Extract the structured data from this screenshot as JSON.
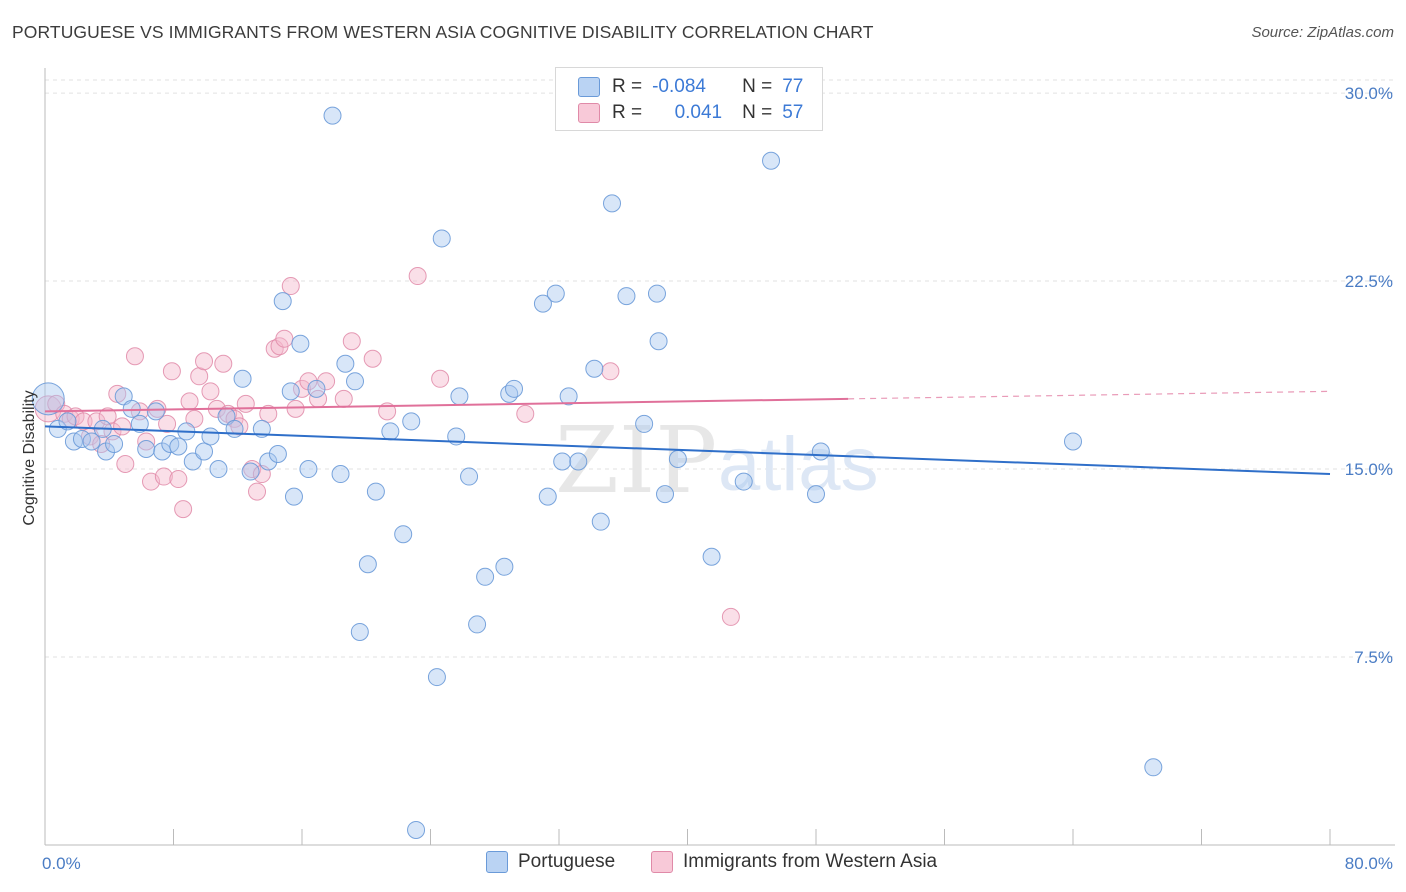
{
  "title": "PORTUGUESE VS IMMIGRANTS FROM WESTERN ASIA COGNITIVE DISABILITY CORRELATION CHART",
  "source": "Source: ZipAtlas.com",
  "watermark_zip": "ZIP",
  "watermark_atlas": "atlas",
  "legend": {
    "r_label": "R =",
    "n_label": "N =",
    "series": [
      {
        "r": "-0.084",
        "n": "77"
      },
      {
        "r": "0.041",
        "n": "57"
      }
    ]
  },
  "colors": {
    "blue_fill": "#a9c8f0",
    "blue_stroke": "#6a9ad8",
    "blue_line": "#2f6fc9",
    "pink_fill": "#f5b8cc",
    "pink_stroke": "#e08aa8",
    "pink_line": "#e0709a"
  },
  "chart_data": {
    "type": "scatter",
    "title": "PORTUGUESE VS IMMIGRANTS FROM WESTERN ASIA COGNITIVE DISABILITY CORRELATION CHART",
    "xlabel": "",
    "ylabel": "Cognitive Disability",
    "xlim": [
      0,
      80
    ],
    "ylim": [
      0,
      31
    ],
    "x_tick_labels": [
      "0.0%",
      "80.0%"
    ],
    "y_ticks": [
      7.5,
      15.0,
      22.5,
      30.0
    ],
    "y_tick_labels": [
      "7.5%",
      "15.0%",
      "22.5%",
      "30.0%"
    ],
    "series": [
      {
        "name": "Portuguese",
        "r": -0.084,
        "n": 77,
        "trend": {
          "x0": 0,
          "y0": 16.7,
          "x1": 80,
          "y1": 14.8
        },
        "points": [
          [
            0.2,
            17.8
          ],
          [
            0.8,
            16.6
          ],
          [
            1.4,
            16.9
          ],
          [
            1.8,
            16.1
          ],
          [
            2.3,
            16.2
          ],
          [
            2.9,
            16.1
          ],
          [
            3.6,
            16.6
          ],
          [
            3.8,
            15.7
          ],
          [
            4.3,
            16.0
          ],
          [
            4.9,
            17.9
          ],
          [
            5.4,
            17.4
          ],
          [
            5.9,
            16.8
          ],
          [
            6.3,
            15.8
          ],
          [
            6.9,
            17.3
          ],
          [
            7.3,
            15.7
          ],
          [
            7.8,
            16.0
          ],
          [
            8.3,
            15.9
          ],
          [
            8.8,
            16.5
          ],
          [
            9.2,
            15.3
          ],
          [
            9.9,
            15.7
          ],
          [
            10.3,
            16.3
          ],
          [
            10.8,
            15.0
          ],
          [
            11.3,
            17.1
          ],
          [
            11.8,
            16.6
          ],
          [
            12.3,
            18.6
          ],
          [
            12.8,
            14.9
          ],
          [
            13.5,
            16.6
          ],
          [
            13.9,
            15.3
          ],
          [
            14.5,
            15.6
          ],
          [
            14.8,
            21.7
          ],
          [
            15.3,
            18.1
          ],
          [
            15.5,
            13.9
          ],
          [
            15.9,
            20.0
          ],
          [
            16.4,
            15.0
          ],
          [
            16.9,
            18.2
          ],
          [
            17.9,
            29.1
          ],
          [
            18.4,
            14.8
          ],
          [
            18.7,
            19.2
          ],
          [
            19.3,
            18.5
          ],
          [
            19.6,
            8.5
          ],
          [
            20.1,
            11.2
          ],
          [
            20.6,
            14.1
          ],
          [
            21.5,
            16.5
          ],
          [
            22.3,
            12.4
          ],
          [
            22.8,
            16.9
          ],
          [
            23.1,
            0.6
          ],
          [
            24.4,
            6.7
          ],
          [
            24.7,
            24.2
          ],
          [
            25.6,
            16.3
          ],
          [
            25.8,
            17.9
          ],
          [
            26.4,
            14.7
          ],
          [
            26.9,
            8.8
          ],
          [
            27.4,
            10.7
          ],
          [
            28.6,
            11.1
          ],
          [
            28.9,
            18.0
          ],
          [
            29.2,
            18.2
          ],
          [
            31.0,
            21.6
          ],
          [
            31.3,
            13.9
          ],
          [
            31.8,
            22.0
          ],
          [
            32.2,
            15.3
          ],
          [
            32.6,
            17.9
          ],
          [
            33.2,
            15.3
          ],
          [
            34.2,
            19.0
          ],
          [
            34.6,
            12.9
          ],
          [
            35.3,
            25.6
          ],
          [
            36.2,
            21.9
          ],
          [
            37.3,
            16.8
          ],
          [
            38.1,
            22.0
          ],
          [
            38.2,
            20.1
          ],
          [
            38.6,
            14.0
          ],
          [
            39.4,
            15.4
          ],
          [
            41.5,
            11.5
          ],
          [
            43.5,
            14.5
          ],
          [
            45.2,
            27.3
          ],
          [
            48.0,
            14.0
          ],
          [
            48.3,
            15.7
          ],
          [
            64.0,
            16.1
          ],
          [
            69.0,
            3.1
          ]
        ]
      },
      {
        "name": "Immigrants from Western Asia",
        "r": 0.041,
        "n": 57,
        "trend": {
          "x0": 0,
          "y0": 17.3,
          "x1": 50,
          "y1": 17.8
        },
        "trend_dashed": {
          "x0": 50,
          "y0": 17.8,
          "x1": 80,
          "y1": 18.1
        },
        "points": [
          [
            0.2,
            17.4
          ],
          [
            0.7,
            17.6
          ],
          [
            1.2,
            17.2
          ],
          [
            1.6,
            17.0
          ],
          [
            1.9,
            17.1
          ],
          [
            2.4,
            16.9
          ],
          [
            2.8,
            16.3
          ],
          [
            3.2,
            16.9
          ],
          [
            3.5,
            16.0
          ],
          [
            3.9,
            17.1
          ],
          [
            4.2,
            16.5
          ],
          [
            4.5,
            18.0
          ],
          [
            4.8,
            16.7
          ],
          [
            5.0,
            15.2
          ],
          [
            5.6,
            19.5
          ],
          [
            5.9,
            17.3
          ],
          [
            6.3,
            16.1
          ],
          [
            6.6,
            14.5
          ],
          [
            7.0,
            17.4
          ],
          [
            7.4,
            14.7
          ],
          [
            7.6,
            16.8
          ],
          [
            7.9,
            18.9
          ],
          [
            8.3,
            14.6
          ],
          [
            8.6,
            13.4
          ],
          [
            9.0,
            17.7
          ],
          [
            9.3,
            17.0
          ],
          [
            9.6,
            18.7
          ],
          [
            9.9,
            19.3
          ],
          [
            10.3,
            18.1
          ],
          [
            10.7,
            17.4
          ],
          [
            11.1,
            19.2
          ],
          [
            11.4,
            17.2
          ],
          [
            11.8,
            17.0
          ],
          [
            12.1,
            16.7
          ],
          [
            12.5,
            17.6
          ],
          [
            12.9,
            15.0
          ],
          [
            13.2,
            14.1
          ],
          [
            13.5,
            14.8
          ],
          [
            13.9,
            17.2
          ],
          [
            14.3,
            19.8
          ],
          [
            14.6,
            19.9
          ],
          [
            14.9,
            20.2
          ],
          [
            15.3,
            22.3
          ],
          [
            15.6,
            17.4
          ],
          [
            16.0,
            18.2
          ],
          [
            16.4,
            18.5
          ],
          [
            17.0,
            17.8
          ],
          [
            17.5,
            18.5
          ],
          [
            18.6,
            17.8
          ],
          [
            19.1,
            20.1
          ],
          [
            20.4,
            19.4
          ],
          [
            21.3,
            17.3
          ],
          [
            23.2,
            22.7
          ],
          [
            24.6,
            18.6
          ],
          [
            29.9,
            17.2
          ],
          [
            35.2,
            18.9
          ],
          [
            42.7,
            9.1
          ]
        ]
      }
    ]
  },
  "bottom_legend": [
    "Portuguese",
    "Immigrants from Western Asia"
  ]
}
